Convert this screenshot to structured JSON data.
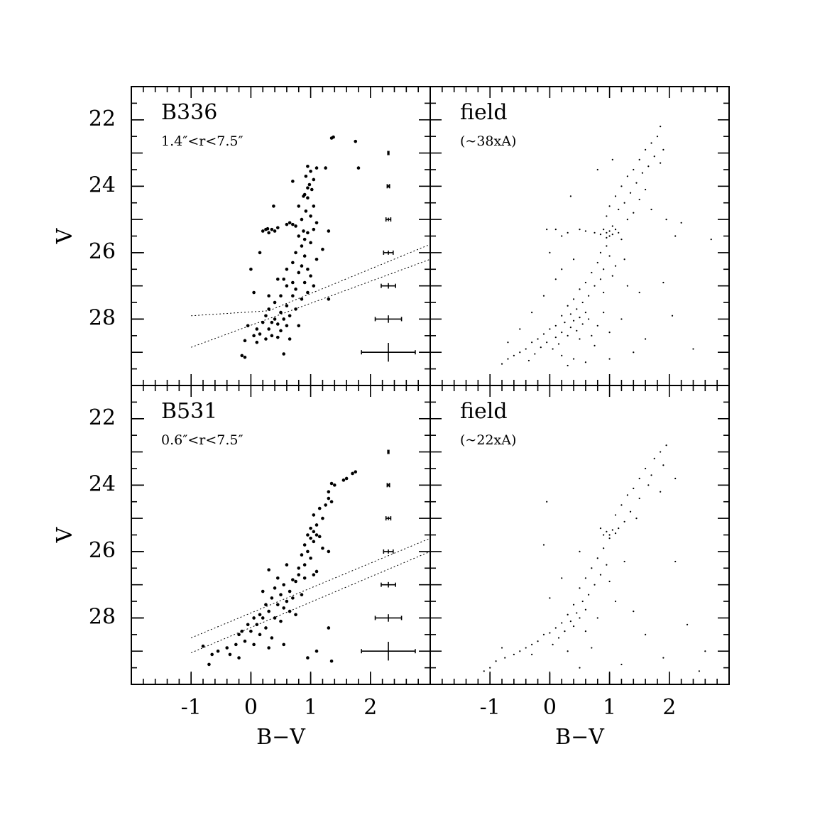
{
  "chart_data": [
    {
      "type": "scatter",
      "title": "B336",
      "subtitle": "1.4″<r<7.5″",
      "ylabel": "V",
      "xlim": [
        -2,
        3
      ],
      "ylim": [
        30,
        21
      ],
      "yticks": [
        22,
        24,
        26,
        28
      ],
      "xminorticks": [
        -2,
        -1.8,
        -1.6,
        -1.4,
        -1.2,
        -1,
        -0.8,
        -0.6,
        -0.4,
        -0.2,
        0,
        0.2,
        0.4,
        0.6,
        0.8,
        1,
        1.2,
        1.4,
        1.6,
        1.8,
        2,
        2.2,
        2.4,
        2.6,
        2.8,
        3
      ],
      "yminorticks": [
        21,
        21.5,
        22,
        22.5,
        23,
        23.5,
        24,
        24.5,
        25,
        25.5,
        26,
        26.5,
        27,
        27.5,
        28,
        28.5,
        29,
        29.5,
        30
      ],
      "color": "#000000",
      "marker_size": 2.3,
      "x": [
        1.35,
        1.38,
        1.75,
        1.8,
        1.25,
        1.1,
        0.95,
        1.0,
        0.92,
        1.05,
        0.98,
        0.95,
        1.02,
        0.9,
        0.95,
        0.88,
        0.7,
        0.8,
        1.05,
        0.92,
        0.38,
        0.85,
        1.0,
        1.1,
        0.65,
        0.7,
        0.75,
        0.6,
        0.2,
        0.25,
        0.3,
        0.35,
        0.4,
        0.28,
        0.45,
        0.88,
        0.95,
        1.05,
        1.3,
        0.8,
        0.9,
        1.0,
        0.85,
        1.2,
        0.75,
        0.9,
        1.1,
        0.7,
        0.85,
        0.95,
        0.6,
        0.8,
        1.0,
        0.55,
        0.7,
        0.9,
        1.05,
        0.6,
        0.75,
        0.95,
        0.5,
        0.7,
        0.85,
        1.3,
        0.4,
        0.6,
        0.75,
        0.3,
        0.5,
        0.65,
        0.25,
        0.4,
        0.55,
        0.35,
        0.45,
        0.6,
        0.2,
        0.1,
        0.3,
        0.5,
        -0.05,
        0.15,
        0.35,
        0.05,
        0.25,
        0.45,
        -0.1,
        0.1,
        -0.15,
        -0.1,
        0.55,
        0.0,
        0.05,
        0.15,
        0.45,
        0.3,
        0.65,
        0.8
      ],
      "values": [
        22.55,
        22.52,
        22.65,
        23.45,
        23.45,
        23.45,
        23.4,
        23.55,
        23.7,
        23.8,
        23.95,
        24.05,
        24.1,
        24.25,
        24.35,
        24.3,
        23.85,
        24.6,
        24.6,
        24.75,
        24.6,
        25.0,
        24.9,
        25.1,
        25.1,
        25.15,
        25.2,
        25.15,
        25.35,
        25.3,
        25.4,
        25.3,
        25.35,
        25.28,
        25.25,
        25.35,
        25.4,
        25.3,
        25.35,
        25.5,
        25.6,
        25.7,
        25.8,
        25.9,
        26.0,
        26.1,
        26.2,
        26.3,
        26.4,
        26.5,
        26.5,
        26.6,
        26.7,
        26.8,
        26.9,
        26.9,
        27.0,
        27.0,
        27.1,
        27.2,
        27.3,
        27.3,
        27.4,
        27.4,
        27.5,
        27.6,
        27.7,
        27.7,
        27.8,
        27.9,
        27.9,
        28.0,
        28.0,
        28.1,
        28.15,
        28.2,
        28.1,
        28.3,
        28.3,
        28.35,
        28.2,
        28.45,
        28.5,
        28.5,
        28.6,
        28.55,
        28.65,
        28.7,
        29.1,
        29.15,
        29.05,
        26.5,
        27.2,
        26.0,
        26.8,
        27.3,
        28.6,
        28.2
      ],
      "error_bars": {
        "x": [
          2.3,
          2.3,
          2.3,
          2.3,
          2.3,
          2.3,
          2.3
        ],
        "y": [
          23,
          24,
          25,
          26,
          27,
          28,
          29
        ],
        "xerr": [
          0.01,
          0.02,
          0.04,
          0.08,
          0.12,
          0.22,
          0.45
        ],
        "yerr": [
          0.01,
          0.01,
          0.02,
          0.03,
          0.05,
          0.08,
          0.25
        ]
      },
      "lines": [
        {
          "x": [
            -1,
            0.3,
            3
          ],
          "y": [
            27.9,
            27.75,
            25.75
          ]
        },
        {
          "x": [
            -1,
            3
          ],
          "y": [
            28.85,
            26.2
          ]
        }
      ]
    },
    {
      "type": "scatter",
      "title": "field",
      "subtitle": "(~38xA)",
      "xlim": [
        -2,
        3
      ],
      "ylim": [
        30,
        21
      ],
      "xminorticks": [
        -2,
        -1.8,
        -1.6,
        -1.4,
        -1.2,
        -1,
        -0.8,
        -0.6,
        -0.4,
        -0.2,
        0,
        0.2,
        0.4,
        0.6,
        0.8,
        1,
        1.2,
        1.4,
        1.6,
        1.8,
        2,
        2.2,
        2.4,
        2.6,
        2.8,
        3
      ],
      "yminorticks": [
        21,
        21.5,
        22,
        22.5,
        23,
        23.5,
        24,
        24.5,
        25,
        25.5,
        26,
        26.5,
        27,
        27.5,
        28,
        28.5,
        29,
        29.5,
        30
      ],
      "color": "#000000",
      "marker_size": 1.1,
      "x": [
        1.85,
        1.8,
        1.7,
        1.9,
        1.6,
        1.75,
        1.5,
        1.65,
        1.4,
        1.55,
        1.85,
        1.3,
        1.45,
        1.2,
        1.6,
        1.35,
        1.1,
        1.25,
        1.5,
        1.0,
        1.15,
        1.4,
        0.95,
        1.3,
        1.7,
        1.95,
        0.9,
        0.95,
        1.0,
        1.05,
        1.1,
        1.0,
        0.85,
        1.05,
        1.15,
        0.95,
        0.75,
        0.6,
        0.5,
        0.3,
        0.1,
        0.2,
        1.2,
        0.95,
        0.85,
        1.0,
        0.8,
        0.9,
        0.7,
        0.85,
        1.05,
        0.6,
        0.75,
        0.5,
        0.65,
        0.9,
        1.1,
        1.25,
        1.3,
        0.4,
        0.55,
        0.3,
        0.45,
        0.6,
        0.35,
        0.5,
        0.2,
        0.65,
        0.4,
        0.55,
        0.25,
        0.1,
        0.35,
        0.45,
        0.0,
        0.2,
        -0.1,
        0.3,
        0.1,
        -0.2,
        0.5,
        -0.05,
        0.15,
        -0.3,
        -0.15,
        0.05,
        -0.4,
        -0.5,
        -0.25,
        -0.6,
        -0.7,
        -0.35,
        0.2,
        0.4,
        -0.8,
        0.7,
        0.8,
        0.9,
        0.75,
        1.0,
        1.2,
        0.6,
        1.0,
        0.0,
        0.2,
        -0.1,
        -0.3,
        0.1,
        -0.05,
        0.4,
        1.5,
        1.6,
        1.4,
        1.9,
        2.2,
        2.1,
        2.7,
        2.4,
        2.05,
        0.35,
        0.8,
        1.05,
        -0.5,
        -0.7,
        0.3
      ],
      "values": [
        22.2,
        22.5,
        22.7,
        22.9,
        22.9,
        23.1,
        23.2,
        23.4,
        23.5,
        23.6,
        23.3,
        23.7,
        23.9,
        24.0,
        24.1,
        24.2,
        24.3,
        24.5,
        24.4,
        24.6,
        24.7,
        24.8,
        24.9,
        25.0,
        24.7,
        25.0,
        25.3,
        25.4,
        25.35,
        25.45,
        25.3,
        25.5,
        25.45,
        25.2,
        25.4,
        25.55,
        25.4,
        25.35,
        25.3,
        25.4,
        25.3,
        25.5,
        25.6,
        25.8,
        26.0,
        26.1,
        26.3,
        26.5,
        26.6,
        26.8,
        26.7,
        26.9,
        27.0,
        27.1,
        27.3,
        27.2,
        26.4,
        26.2,
        27.0,
        27.4,
        27.5,
        27.6,
        27.7,
        27.8,
        27.85,
        27.95,
        27.9,
        28.0,
        28.05,
        28.15,
        28.1,
        28.2,
        28.25,
        28.35,
        28.3,
        28.4,
        28.45,
        28.5,
        28.55,
        28.6,
        28.6,
        28.7,
        28.75,
        28.7,
        28.85,
        28.9,
        28.9,
        29.0,
        29.05,
        29.1,
        29.2,
        29.25,
        29.1,
        29.2,
        29.35,
        28.5,
        28.2,
        27.8,
        28.8,
        28.4,
        28.0,
        29.3,
        29.2,
        26.0,
        26.5,
        27.3,
        27.8,
        26.8,
        25.3,
        26.2,
        27.2,
        28.6,
        29.0,
        26.9,
        25.1,
        25.5,
        25.6,
        28.9,
        27.9,
        24.3,
        23.5,
        23.2,
        28.3,
        28.7,
        29.4
      ]
    },
    {
      "type": "scatter",
      "title": "B531",
      "subtitle": "0.6″<r<7.5″",
      "ylabel": "V",
      "xlabel": "B−V",
      "xlim": [
        -2,
        3
      ],
      "ylim": [
        30,
        21
      ],
      "xticks": [
        -1,
        0,
        1,
        2
      ],
      "yticks": [
        22,
        24,
        26,
        28
      ],
      "xminorticks": [
        -2,
        -1.8,
        -1.6,
        -1.4,
        -1.2,
        -1,
        -0.8,
        -0.6,
        -0.4,
        -0.2,
        0,
        0.2,
        0.4,
        0.6,
        0.8,
        1,
        1.2,
        1.4,
        1.6,
        1.8,
        2,
        2.2,
        2.4,
        2.6,
        2.8,
        3
      ],
      "yminorticks": [
        21,
        21.5,
        22,
        22.5,
        23,
        23.5,
        24,
        24.5,
        25,
        25.5,
        26,
        26.5,
        27,
        27.5,
        28,
        28.5,
        29,
        29.5,
        30
      ],
      "color": "#000000",
      "marker_size": 2.3,
      "x": [
        1.75,
        1.7,
        1.6,
        1.55,
        1.4,
        1.35,
        1.3,
        1.35,
        1.25,
        1.15,
        1.05,
        1.2,
        1.3,
        1.1,
        1.0,
        1.05,
        1.1,
        0.95,
        1.0,
        1.15,
        1.05,
        0.9,
        1.2,
        0.95,
        0.85,
        1.0,
        0.9,
        0.8,
        1.1,
        1.3,
        0.8,
        0.9,
        1.05,
        0.7,
        0.75,
        0.3,
        0.45,
        0.55,
        0.65,
        0.4,
        0.5,
        0.6,
        0.7,
        0.35,
        0.45,
        0.55,
        0.65,
        0.25,
        0.3,
        0.15,
        0.2,
        0.4,
        0.5,
        0.05,
        0.1,
        0.25,
        -0.05,
        0.0,
        0.15,
        -0.15,
        -0.2,
        0.35,
        -0.1,
        0.05,
        -0.25,
        0.3,
        0.55,
        -0.4,
        -0.55,
        -0.65,
        -0.8,
        -0.7,
        -0.35,
        -0.2,
        0.95,
        1.3,
        1.35,
        1.1,
        0.75,
        0.85,
        0.6,
        0.2
      ],
      "values": [
        23.6,
        23.65,
        23.8,
        23.85,
        24.0,
        23.95,
        24.2,
        24.5,
        24.6,
        24.7,
        24.9,
        25.0,
        24.4,
        25.2,
        25.3,
        25.4,
        25.5,
        25.5,
        25.6,
        25.55,
        25.7,
        25.8,
        25.9,
        26.0,
        26.1,
        26.2,
        26.4,
        26.5,
        26.6,
        26.0,
        26.7,
        26.8,
        26.7,
        26.85,
        26.9,
        26.55,
        26.8,
        27.0,
        27.2,
        27.1,
        27.3,
        27.5,
        27.4,
        27.4,
        27.6,
        27.7,
        27.8,
        27.6,
        27.8,
        27.9,
        28.0,
        28.0,
        28.1,
        28.0,
        28.2,
        28.3,
        28.2,
        28.4,
        28.5,
        28.4,
        28.5,
        28.6,
        28.7,
        28.8,
        28.8,
        28.9,
        28.8,
        28.9,
        29.0,
        29.1,
        28.85,
        29.4,
        29.1,
        29.2,
        29.2,
        28.3,
        29.3,
        29.0,
        27.9,
        27.3,
        26.4,
        27.2
      ],
      "error_bars": {
        "x": [
          2.3,
          2.3,
          2.3,
          2.3,
          2.3,
          2.3,
          2.3
        ],
        "y": [
          23,
          24,
          25,
          26,
          27,
          28,
          29
        ],
        "xerr": [
          0.01,
          0.02,
          0.04,
          0.08,
          0.12,
          0.22,
          0.45
        ],
        "yerr": [
          0.01,
          0.01,
          0.02,
          0.03,
          0.05,
          0.08,
          0.25
        ]
      },
      "lines": [
        {
          "x": [
            -1,
            3
          ],
          "y": [
            28.6,
            25.6
          ]
        },
        {
          "x": [
            -1,
            3
          ],
          "y": [
            29.05,
            26.0
          ]
        }
      ]
    },
    {
      "type": "scatter",
      "title": "field",
      "subtitle": "(~22xA)",
      "xlabel": "B−V",
      "xlim": [
        -2,
        3
      ],
      "ylim": [
        30,
        21
      ],
      "xticks": [
        -1,
        0,
        1,
        2
      ],
      "xminorticks": [
        -2,
        -1.8,
        -1.6,
        -1.4,
        -1.2,
        -1,
        -0.8,
        -0.6,
        -0.4,
        -0.2,
        0,
        0.2,
        0.4,
        0.6,
        0.8,
        1,
        1.2,
        1.4,
        1.6,
        1.8,
        2,
        2.2,
        2.4,
        2.6,
        2.8,
        3
      ],
      "yminorticks": [
        21,
        21.5,
        22,
        22.5,
        23,
        23.5,
        24,
        24.5,
        25,
        25.5,
        26,
        26.5,
        27,
        27.5,
        28,
        28.5,
        29,
        29.5,
        30
      ],
      "color": "#000000",
      "marker_size": 1.1,
      "x": [
        1.95,
        1.85,
        1.75,
        1.9,
        1.6,
        1.7,
        1.5,
        1.65,
        1.4,
        1.3,
        1.5,
        1.2,
        1.35,
        1.1,
        1.25,
        1.45,
        2.1,
        0.95,
        1.0,
        1.05,
        1.1,
        1.0,
        0.9,
        1.15,
        0.85,
        0.9,
        0.8,
        0.95,
        0.7,
        0.85,
        0.6,
        0.75,
        1.0,
        0.5,
        0.65,
        1.1,
        1.25,
        0.55,
        0.4,
        0.6,
        0.45,
        0.3,
        0.5,
        0.35,
        0.2,
        0.4,
        0.1,
        0.25,
        0.0,
        -0.1,
        0.15,
        -0.2,
        -0.3,
        0.05,
        -0.4,
        -0.5,
        -0.6,
        -0.3,
        -0.75,
        -0.9,
        -1.0,
        -1.1,
        0.3,
        0.6,
        0.8,
        0.7,
        0.2,
        0.0,
        -0.1,
        0.5,
        -0.05,
        1.4,
        1.6,
        1.9,
        2.1,
        1.85,
        2.3,
        2.6,
        2.5,
        1.2,
        -0.8,
        0.5
      ],
      "values": [
        22.8,
        23.0,
        23.2,
        23.4,
        23.5,
        23.7,
        23.8,
        24.0,
        24.1,
        24.3,
        24.4,
        24.6,
        24.8,
        24.9,
        25.1,
        25.0,
        23.8,
        25.4,
        25.5,
        25.35,
        25.45,
        25.6,
        25.5,
        25.3,
        25.3,
        25.9,
        26.2,
        26.4,
        26.5,
        26.7,
        26.8,
        27.0,
        26.9,
        27.1,
        27.3,
        27.5,
        26.3,
        27.5,
        27.6,
        27.75,
        27.85,
        27.9,
        28.0,
        28.1,
        28.15,
        28.25,
        28.3,
        28.4,
        28.45,
        28.5,
        28.6,
        28.7,
        28.8,
        28.8,
        28.9,
        29.0,
        29.1,
        29.1,
        29.2,
        29.3,
        29.5,
        29.6,
        29.0,
        28.4,
        28.0,
        28.9,
        26.8,
        27.4,
        25.8,
        26.0,
        24.5,
        27.8,
        28.5,
        29.2,
        26.3,
        24.2,
        28.2,
        29.0,
        29.6,
        29.4,
        28.9,
        29.5
      ]
    }
  ]
}
